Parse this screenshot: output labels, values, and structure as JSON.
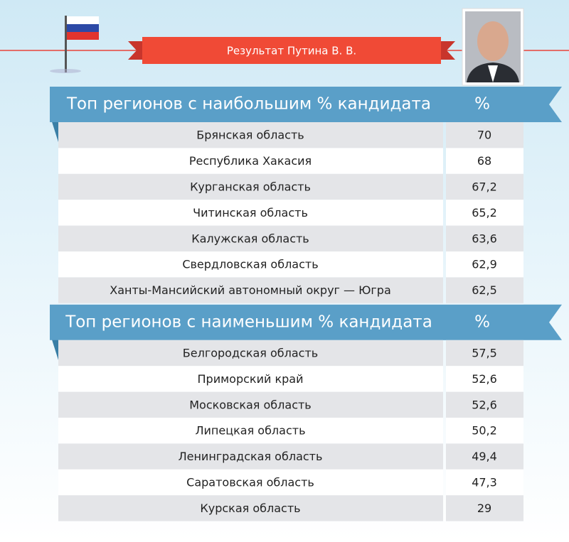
{
  "header": {
    "title": "Результат Путина В. В."
  },
  "tables": [
    {
      "title": "Топ регионов с наибольшим % кандидата",
      "column": "%",
      "rows": [
        [
          "Брянская область",
          "70"
        ],
        [
          "Республика Хакасия",
          "68"
        ],
        [
          "Курганская область",
          "67,2"
        ],
        [
          "Читинская область",
          "65,2"
        ],
        [
          "Калужская область",
          "63,6"
        ],
        [
          "Свердловская область",
          "62,9"
        ],
        [
          "Ханты-Мансийский автономный округ — Югра",
          "62,5"
        ]
      ]
    },
    {
      "title": "Топ регионов с наименьшим % кандидата",
      "column": "%",
      "rows": [
        [
          "Белгородская область",
          "57,5"
        ],
        [
          "Приморский край",
          "52,6"
        ],
        [
          "Московская область",
          "52,6"
        ],
        [
          "Липецкая область",
          "50,2"
        ],
        [
          "Ленинградская область",
          "49,4"
        ],
        [
          "Саратовская область",
          "47,3"
        ],
        [
          "Курская область",
          "29"
        ]
      ]
    }
  ]
}
